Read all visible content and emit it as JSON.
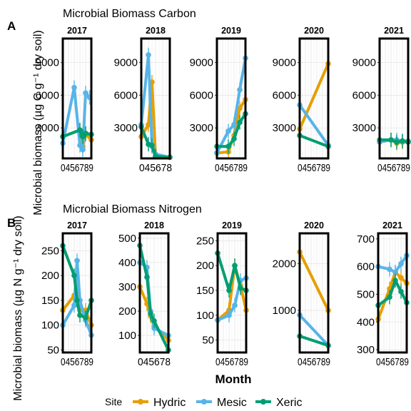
{
  "figure": {
    "panel_a_letter": "A",
    "panel_b_letter": "B",
    "x_axis_label": "Month",
    "legend_title": "Site"
  },
  "colors": {
    "Hydric": "#E69F00",
    "Mesic": "#56B4E9",
    "Xeric": "#009E73"
  },
  "chart_data": [
    {
      "type": "line",
      "title": "Microbial Biomass Carbon",
      "ylabel": "Microbial biomass (µg C g⁻¹ dry soil)",
      "xlabel": "Month",
      "grid": true,
      "legend": "bottom",
      "ytick_labels": [
        "3000",
        "6000",
        "9000"
      ],
      "ylim": [
        200,
        11200
      ],
      "facets": [
        {
          "year": "2017",
          "x_tick_labels": "0456789",
          "xlim": [
            4,
            9
          ],
          "series": [
            {
              "name": "Hydric",
              "x": [
                4,
                7,
                7.5,
                8,
                9
              ],
              "y": [
                2200,
                2800,
                1300,
                2400,
                1900
              ]
            },
            {
              "name": "Mesic",
              "x": [
                4,
                6,
                7,
                7.5,
                8,
                8.7
              ],
              "y": [
                1600,
                6700,
                1400,
                1000,
                6200,
                5800
              ]
            },
            {
              "name": "Xeric",
              "x": [
                4,
                7,
                7.5,
                8,
                9
              ],
              "y": [
                2200,
                2800,
                2200,
                2500,
                2400
              ]
            }
          ]
        },
        {
          "year": "2018",
          "x_tick_labels": "045678",
          "xlim": [
            4,
            8
          ],
          "series": [
            {
              "name": "Hydric",
              "x": [
                4,
                5,
                5.5,
                6,
                8
              ],
              "y": [
                2200,
                3300,
                7200,
                400,
                300
              ]
            },
            {
              "name": "Mesic",
              "x": [
                4,
                5,
                5.5,
                6,
                8
              ],
              "y": [
                3300,
                9700,
                1300,
                600,
                300
              ]
            },
            {
              "name": "Xeric",
              "x": [
                4,
                5,
                5.5,
                6,
                8
              ],
              "y": [
                3100,
                1500,
                1400,
                400,
                300
              ]
            }
          ]
        },
        {
          "year": "2019",
          "x_tick_labels": "0456789",
          "xlim": [
            4,
            9
          ],
          "series": [
            {
              "name": "Hydric",
              "x": [
                4,
                6,
                7,
                8,
                9
              ],
              "y": [
                700,
                800,
                2300,
                4800,
                5600
              ]
            },
            {
              "name": "Mesic",
              "x": [
                4,
                6,
                7,
                8,
                9
              ],
              "y": [
                700,
                2700,
                3300,
                6500,
                9400
              ]
            },
            {
              "name": "Xeric",
              "x": [
                4,
                6,
                7,
                8,
                9
              ],
              "y": [
                1300,
                1300,
                2000,
                3500,
                4300
              ]
            }
          ]
        },
        {
          "year": "2020",
          "x_tick_labels": "0456789",
          "xlim": [
            4,
            9
          ],
          "series": [
            {
              "name": "Hydric",
              "x": [
                4,
                9
              ],
              "y": [
                2900,
                8900
              ]
            },
            {
              "name": "Mesic",
              "x": [
                4,
                9
              ],
              "y": [
                5100,
                1400
              ]
            },
            {
              "name": "Xeric",
              "x": [
                4,
                9
              ],
              "y": [
                2300,
                1300
              ]
            }
          ]
        },
        {
          "year": "2021",
          "x_tick_labels": "0456789",
          "xlim": [
            4,
            9
          ],
          "series": [
            {
              "name": "Hydric",
              "x": [
                4,
                6,
                7,
                8,
                9
              ],
              "y": [
                1700,
                1900,
                1600,
                1700,
                1700
              ]
            },
            {
              "name": "Mesic",
              "x": [
                4,
                6,
                7,
                8,
                9
              ],
              "y": [
                1700,
                1900,
                1900,
                1800,
                1800
              ]
            },
            {
              "name": "Xeric",
              "x": [
                4,
                6,
                7,
                8,
                9
              ],
              "y": [
                1900,
                1900,
                1700,
                1800,
                1700
              ]
            }
          ]
        }
      ]
    },
    {
      "type": "line",
      "title": "Microbial Biomass Nitrogen",
      "ylabel": "Microbial biomass (µg N g⁻¹ dry soil)",
      "xlabel": "Month",
      "grid": true,
      "legend": "bottom",
      "facets": [
        {
          "year": "2017",
          "x_tick_labels": "0456789",
          "xlim": [
            4,
            9
          ],
          "ytick_labels": [
            "50",
            "100",
            "150",
            "200",
            "250"
          ],
          "ylim": [
            45,
            285
          ],
          "series": [
            {
              "name": "Hydric",
              "x": [
                4,
                6,
                6.5,
                7,
                8,
                9
              ],
              "y": [
                130,
                160,
                185,
                130,
                130,
                100
              ]
            },
            {
              "name": "Mesic",
              "x": [
                4,
                6,
                6.5,
                7,
                8,
                9
              ],
              "y": [
                100,
                140,
                230,
                150,
                110,
                80
              ]
            },
            {
              "name": "Xeric",
              "x": [
                4,
                6,
                6.5,
                7,
                8,
                9
              ],
              "y": [
                260,
                200,
                150,
                120,
                115,
                150
              ]
            }
          ]
        },
        {
          "year": "2018",
          "x_tick_labels": "045678",
          "xlim": [
            4,
            8
          ],
          "ytick_labels": [
            "100",
            "200",
            "300",
            "400",
            "500"
          ],
          "ylim": [
            30,
            520
          ],
          "series": [
            {
              "name": "Hydric",
              "x": [
                4,
                5,
                5.5,
                6,
                8
              ],
              "y": [
                300,
                230,
                180,
                140,
                80
              ]
            },
            {
              "name": "Mesic",
              "x": [
                4,
                5,
                5.5,
                6,
                8
              ],
              "y": [
                400,
                380,
                200,
                130,
                100
              ]
            },
            {
              "name": "Xeric",
              "x": [
                4,
                5,
                5.5,
                6,
                8
              ],
              "y": [
                470,
                340,
                190,
                160,
                40
              ]
            }
          ]
        },
        {
          "year": "2019",
          "x_tick_labels": "0456789",
          "xlim": [
            4,
            9
          ],
          "ytick_labels": [
            "50",
            "100",
            "150",
            "200",
            "250"
          ],
          "ylim": [
            25,
            265
          ],
          "series": [
            {
              "name": "Hydric",
              "x": [
                4,
                6,
                7,
                8,
                9
              ],
              "y": [
                90,
                110,
                200,
                160,
                110
              ]
            },
            {
              "name": "Mesic",
              "x": [
                4,
                6,
                7,
                8,
                9
              ],
              "y": [
                90,
                100,
                120,
                170,
                175
              ]
            },
            {
              "name": "Xeric",
              "x": [
                4,
                6,
                7,
                8,
                9
              ],
              "y": [
                225,
                150,
                200,
                155,
                150
              ]
            }
          ]
        },
        {
          "year": "2020",
          "x_tick_labels": "0456789",
          "xlim": [
            4,
            9
          ],
          "ytick_labels": [
            "1000",
            "2000"
          ],
          "ylim": [
            100,
            2650
          ],
          "series": [
            {
              "name": "Hydric",
              "x": [
                4,
                9
              ],
              "y": [
                2250,
                1000
              ]
            },
            {
              "name": "Mesic",
              "x": [
                4,
                9
              ],
              "y": [
                900,
                250
              ]
            },
            {
              "name": "Xeric",
              "x": [
                4,
                9
              ],
              "y": [
                450,
                250
              ]
            }
          ]
        },
        {
          "year": "2021",
          "x_tick_labels": "0456789",
          "xlim": [
            4,
            9
          ],
          "ytick_labels": [
            "300",
            "400",
            "500",
            "600",
            "700"
          ],
          "ylim": [
            290,
            720
          ],
          "series": [
            {
              "name": "Hydric",
              "x": [
                4,
                6,
                7,
                8,
                9
              ],
              "y": [
                410,
                520,
                580,
                560,
                540
              ]
            },
            {
              "name": "Mesic",
              "x": [
                4,
                6,
                7,
                8,
                9
              ],
              "y": [
                600,
                590,
                580,
                610,
                640
              ]
            },
            {
              "name": "Xeric",
              "x": [
                4,
                6,
                7,
                8,
                9
              ],
              "y": [
                460,
                490,
                550,
                510,
                470
              ]
            }
          ]
        }
      ]
    }
  ]
}
